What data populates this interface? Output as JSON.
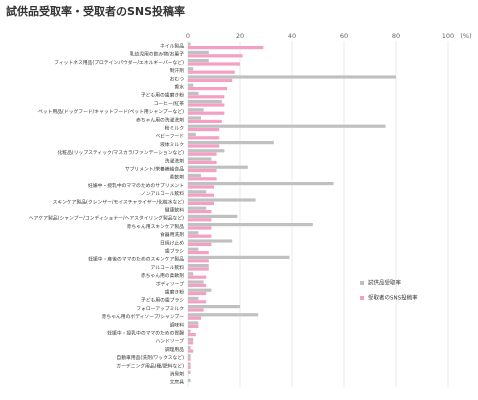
{
  "chart_data": {
    "type": "hbar",
    "title": "試供品受取率・受取者のSNS投稿率",
    "x_axis_label": "(%)",
    "categories": [
      "ネイル製品",
      "乳幼児用の飲み物/お菓子",
      "フィットネス用品(プロテインパウダー/エネルギーバーなど)",
      "制汗剤",
      "おむつ",
      "香水",
      "子ども用の歯磨き粉",
      "コーヒー/紅茶",
      "ペット用品(ドッグフード/キャットフード/ペット用シャンプーなど)",
      "赤ちゃん用の洗濯洗剤",
      "粉ミルク",
      "ベビーフード",
      "液体ミルク",
      "化粧品(リップスティック/マスカラ/ファンデーションなど)",
      "洗濯洗剤",
      "サプリメント/栄養補給食品",
      "柔軟剤",
      "妊娠中・授乳中のママのためのサプリメント",
      "ノンアルコール飲料",
      "スキンケア製品(クレンザー/モイスチャライザー/化粧水など)",
      "健康飲料",
      "ヘアケア製品(シャンプー/コンディショナー/ヘアスタイリング製品など)",
      "赤ちゃん用スキンケア製品",
      "食器用洗剤",
      "日焼け止め",
      "歯ブラシ",
      "妊娠中・産後のママのためのスキンケア製品",
      "アルコール飲料",
      "赤ちゃん用の柔軟剤",
      "ボディソープ",
      "歯磨き粉",
      "子ども用の歯ブラシ",
      "フォローアップミルク",
      "赤ちゃん用のボディソープ/シャンプー",
      "調味料",
      "妊娠中・授乳中のママのための胃腸",
      "ハンドソープ",
      "調理用品",
      "自動車用品(洗剤/ワックスなど)",
      "ガーデニング用品(種/肥料など)",
      "消臭剤",
      "文房具"
    ],
    "series": [
      {
        "name": "試供品受取率",
        "color": "#c0c0c0",
        "values": [
          1,
          8,
          8,
          2,
          80,
          2,
          4,
          13,
          6,
          5,
          76,
          3,
          33,
          14,
          9,
          23,
          5,
          56,
          7,
          26,
          7,
          19,
          48,
          4,
          17,
          4,
          39,
          8,
          2,
          6,
          9,
          4,
          20,
          27,
          4,
          1,
          2,
          1,
          1,
          1,
          1,
          1
        ]
      },
      {
        "name": "受取者のSNS投稿率",
        "color": "#f4a0c4",
        "values": [
          29,
          21,
          20,
          18,
          17,
          15,
          14,
          14,
          14,
          13,
          12,
          12,
          12,
          11,
          11,
          11,
          11,
          10,
          10,
          10,
          9,
          9,
          9,
          9,
          9,
          8,
          8,
          8,
          7,
          7,
          7,
          7,
          6,
          5,
          4,
          3,
          2,
          2,
          1,
          1,
          0,
          0
        ]
      }
    ],
    "xlim": [
      0,
      100
    ],
    "xticks": [
      0,
      20,
      40,
      60,
      80,
      100
    ],
    "grid": true
  }
}
